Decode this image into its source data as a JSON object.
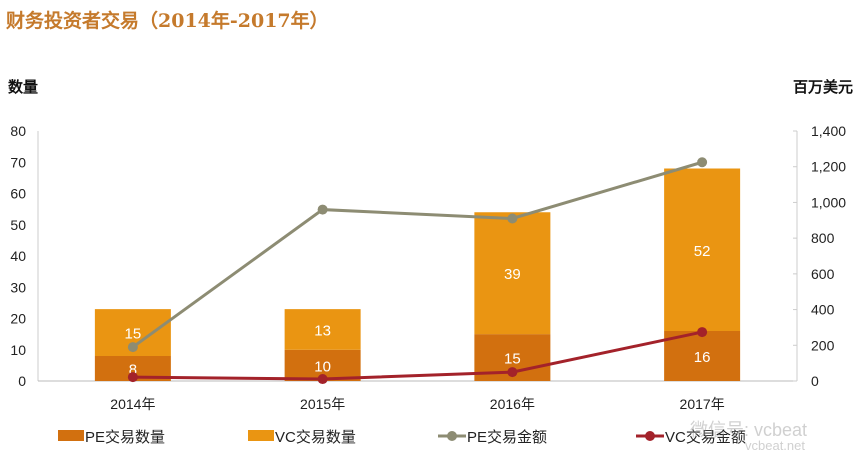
{
  "chart_data": {
    "type": "bar",
    "title": "财务投资者交易（2014年-2017年）",
    "ylabel_left": "数量",
    "ylabel_right": "百万美元",
    "categories": [
      "2014年",
      "2015年",
      "2016年",
      "2017年"
    ],
    "ylim_left": [
      0,
      80
    ],
    "ylim_right": [
      0,
      1400
    ],
    "yticks_left": [
      "0",
      "10",
      "20",
      "30",
      "40",
      "50",
      "60",
      "70",
      "80"
    ],
    "yticks_right": [
      "0",
      "200",
      "400",
      "600",
      "800",
      "1,000",
      "1,200",
      "1,400"
    ],
    "series": [
      {
        "name": "PE交易数量",
        "type": "stacked-bar",
        "axis": "left",
        "color": "#d2700f",
        "values": [
          8,
          10,
          15,
          16
        ]
      },
      {
        "name": "VC交易数量",
        "type": "stacked-bar",
        "axis": "left",
        "color": "#ea9512",
        "values": [
          15,
          13,
          39,
          52
        ]
      },
      {
        "name": "PE交易金额",
        "type": "line",
        "axis": "right",
        "color": "#8d8c73",
        "values": [
          190,
          960,
          910,
          1225
        ]
      },
      {
        "name": "VC交易金额",
        "type": "line",
        "axis": "right",
        "color": "#a3222a",
        "values": [
          22,
          11,
          50,
          274
        ]
      }
    ],
    "legend": "bottom"
  },
  "watermark": {
    "line1": "微信号: vcbeat",
    "line2": "vcbeat.net"
  }
}
